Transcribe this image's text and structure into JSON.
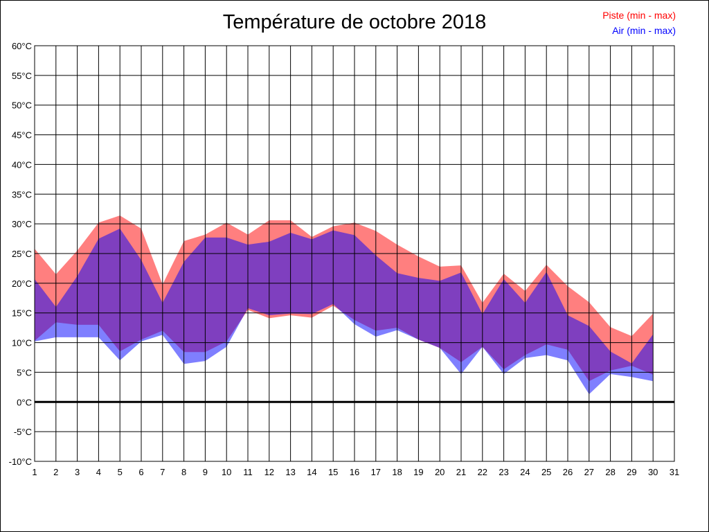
{
  "chart_data": {
    "type": "area",
    "title": "Température de octobre 2018",
    "xlabel": "",
    "ylabel": "",
    "x_ticks": [
      1,
      2,
      3,
      4,
      5,
      6,
      7,
      8,
      9,
      10,
      11,
      12,
      13,
      14,
      15,
      16,
      17,
      18,
      19,
      20,
      21,
      22,
      23,
      24,
      25,
      26,
      27,
      28,
      29,
      30,
      31
    ],
    "xlim": [
      1,
      31
    ],
    "ylim": [
      -10,
      60
    ],
    "y_ticks": [
      -10,
      -5,
      0,
      5,
      10,
      15,
      20,
      25,
      30,
      35,
      40,
      45,
      50,
      55,
      60
    ],
    "y_unit": "°C",
    "grid": true,
    "legend_position": "top-right",
    "x": [
      1,
      2,
      3,
      4,
      5,
      6,
      7,
      8,
      9,
      10,
      11,
      12,
      13,
      14,
      15,
      16,
      17,
      18,
      19,
      20,
      21,
      22,
      23,
      24,
      25,
      26,
      27,
      28,
      29,
      30
    ],
    "series": [
      {
        "name": "Piste (min - max)",
        "color": "#ff0000",
        "min": [
          10.3,
          13.4,
          13,
          13,
          8.5,
          10.5,
          12,
          8.4,
          8.4,
          10.2,
          15.5,
          14.1,
          14.6,
          14.2,
          16.2,
          13.8,
          12,
          12.5,
          10.5,
          9.1,
          6.7,
          9.3,
          5.5,
          7.9,
          9.7,
          8.8,
          3.5,
          5.3,
          6.1,
          4.6
        ],
        "max": [
          25.8,
          21.5,
          25.5,
          30.2,
          31.4,
          29.2,
          19.8,
          27.1,
          28.2,
          30.2,
          28.2,
          30.6,
          30.6,
          27.8,
          29.6,
          30.2,
          28.8,
          26.5,
          24.5,
          22.8,
          23,
          16.7,
          21.6,
          18.7,
          23.1,
          19.5,
          16.8,
          12.6,
          11.1,
          14.9
        ]
      },
      {
        "name": "Air (min - max)",
        "color": "#0000ff",
        "min": [
          10.2,
          10.9,
          10.9,
          10.9,
          7,
          10.2,
          11.3,
          6.4,
          6.9,
          9.3,
          15.8,
          14.6,
          14.9,
          14.8,
          16.5,
          13.1,
          11,
          12.1,
          10.5,
          9.1,
          4.7,
          9.3,
          4.7,
          7.4,
          7.9,
          7,
          1.3,
          4.7,
          4.2,
          3.5
        ],
        "max": [
          20.7,
          16,
          21.2,
          27.5,
          29.2,
          23.9,
          16.7,
          23.6,
          27.7,
          27.7,
          26.5,
          27,
          28.5,
          27.4,
          28.9,
          28.1,
          24.7,
          21.7,
          20.9,
          20.4,
          21.8,
          14.8,
          20.7,
          16.7,
          21.9,
          14.6,
          12.8,
          8.5,
          6.5,
          11.4
        ]
      }
    ]
  }
}
